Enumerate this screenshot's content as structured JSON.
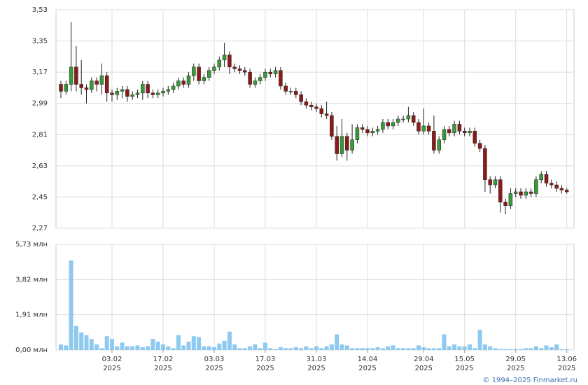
{
  "chart_data": {
    "type": "candlestick",
    "categories": [
      null,
      null,
      null,
      null,
      null,
      null,
      null,
      null,
      null,
      null,
      [
        "03.02",
        "2025"
      ],
      null,
      null,
      null,
      null,
      null,
      null,
      null,
      null,
      null,
      [
        "17.02",
        "2025"
      ],
      null,
      null,
      null,
      null,
      null,
      null,
      null,
      null,
      null,
      [
        "03.03",
        "2025"
      ],
      null,
      null,
      null,
      null,
      null,
      null,
      null,
      null,
      null,
      [
        "17.03",
        "2025"
      ],
      null,
      null,
      null,
      null,
      null,
      null,
      null,
      null,
      null,
      [
        "31.03",
        "2025"
      ],
      null,
      null,
      null,
      null,
      null,
      null,
      null,
      null,
      null,
      [
        "14.04",
        "2025"
      ],
      null,
      null,
      null,
      null,
      null,
      null,
      null,
      null,
      null,
      null,
      [
        "29.04",
        "2025"
      ],
      null,
      null,
      null,
      null,
      null,
      null,
      null,
      [
        "15.05",
        "2025"
      ],
      null,
      null,
      null,
      null,
      null,
      null,
      null,
      null,
      null,
      [
        "29.05",
        "2025"
      ],
      null,
      null,
      null,
      null,
      null,
      null,
      null,
      null,
      null,
      [
        "13.06",
        "2025"
      ]
    ],
    "open": [
      3.1,
      3.06,
      3.1,
      3.2,
      3.1,
      3.08,
      3.07,
      3.12,
      3.1,
      3.15,
      3.05,
      3.04,
      3.06,
      3.07,
      3.03,
      3.04,
      3.05,
      3.1,
      3.05,
      3.04,
      3.05,
      3.06,
      3.07,
      3.09,
      3.12,
      3.1,
      3.15,
      3.2,
      3.12,
      3.14,
      3.18,
      3.2,
      3.24,
      3.27,
      3.2,
      3.19,
      3.18,
      3.17,
      3.1,
      3.12,
      3.14,
      3.17,
      3.16,
      3.18,
      3.09,
      3.06,
      3.06,
      3.04,
      3.0,
      2.98,
      2.97,
      2.96,
      2.93,
      2.92,
      2.8,
      2.7,
      2.8,
      2.72,
      2.78,
      2.85,
      2.84,
      2.82,
      2.83,
      2.84,
      2.88,
      2.86,
      2.88,
      2.9,
      2.9,
      2.92,
      2.88,
      2.83,
      2.86,
      2.83,
      2.72,
      2.78,
      2.84,
      2.82,
      2.87,
      2.83,
      2.82,
      2.83,
      2.76,
      2.73,
      2.55,
      2.52,
      2.55,
      2.42,
      2.4,
      2.47,
      2.48,
      2.46,
      2.48,
      2.47,
      2.55,
      2.58,
      2.53,
      2.52,
      2.5,
      2.49
    ],
    "high": [
      3.12,
      3.12,
      3.46,
      3.32,
      3.24,
      3.1,
      3.14,
      3.14,
      3.22,
      3.17,
      3.07,
      3.08,
      3.09,
      3.09,
      3.06,
      3.07,
      3.12,
      3.12,
      3.07,
      3.07,
      3.08,
      3.09,
      3.11,
      3.14,
      3.14,
      3.17,
      3.22,
      3.22,
      3.16,
      3.2,
      3.22,
      3.26,
      3.34,
      3.29,
      3.22,
      3.21,
      3.2,
      3.19,
      3.14,
      3.16,
      3.19,
      3.19,
      3.2,
      3.2,
      3.11,
      3.08,
      3.08,
      3.06,
      3.02,
      3.0,
      2.99,
      2.98,
      3.0,
      2.94,
      2.86,
      2.9,
      2.82,
      2.87,
      2.87,
      2.87,
      2.86,
      2.85,
      2.86,
      2.9,
      2.9,
      2.9,
      2.92,
      2.92,
      2.97,
      2.94,
      2.9,
      2.96,
      2.88,
      2.92,
      2.8,
      2.86,
      2.86,
      2.89,
      2.89,
      2.85,
      2.85,
      2.85,
      2.78,
      2.75,
      2.57,
      2.57,
      2.57,
      2.44,
      2.5,
      2.5,
      2.5,
      2.5,
      2.5,
      2.57,
      2.6,
      2.6,
      2.55,
      2.54,
      2.52,
      2.5
    ],
    "low": [
      3.02,
      3.04,
      3.06,
      3.06,
      3.04,
      2.99,
      3.05,
      3.06,
      3.04,
      3.0,
      3.0,
      3.01,
      3.02,
      3.0,
      3.01,
      3.02,
      3.01,
      3.02,
      3.02,
      3.02,
      3.03,
      3.04,
      3.05,
      3.07,
      3.08,
      3.08,
      3.12,
      3.1,
      3.1,
      3.12,
      3.16,
      3.18,
      3.2,
      3.16,
      3.17,
      3.16,
      3.15,
      3.08,
      3.08,
      3.1,
      3.12,
      3.14,
      3.14,
      3.07,
      3.04,
      3.04,
      3.02,
      2.98,
      2.96,
      2.95,
      2.94,
      2.91,
      2.9,
      2.78,
      2.66,
      2.68,
      2.66,
      2.7,
      2.76,
      2.82,
      2.8,
      2.8,
      2.81,
      2.82,
      2.84,
      2.84,
      2.86,
      2.88,
      2.88,
      2.86,
      2.81,
      2.81,
      2.81,
      2.7,
      2.7,
      2.76,
      2.8,
      2.8,
      2.81,
      2.8,
      2.8,
      2.74,
      2.71,
      2.48,
      2.47,
      2.5,
      2.36,
      2.35,
      2.38,
      2.45,
      2.44,
      2.44,
      2.45,
      2.45,
      2.53,
      2.51,
      2.5,
      2.48,
      2.47,
      2.47
    ],
    "close": [
      3.06,
      3.1,
      3.2,
      3.1,
      3.08,
      3.07,
      3.12,
      3.1,
      3.15,
      3.05,
      3.04,
      3.06,
      3.07,
      3.03,
      3.04,
      3.05,
      3.1,
      3.05,
      3.04,
      3.05,
      3.06,
      3.07,
      3.09,
      3.12,
      3.1,
      3.15,
      3.2,
      3.12,
      3.14,
      3.18,
      3.2,
      3.24,
      3.27,
      3.2,
      3.19,
      3.18,
      3.17,
      3.1,
      3.12,
      3.14,
      3.17,
      3.16,
      3.18,
      3.09,
      3.06,
      3.06,
      3.04,
      3.0,
      2.98,
      2.97,
      2.96,
      2.93,
      2.92,
      2.8,
      2.7,
      2.8,
      2.72,
      2.78,
      2.85,
      2.84,
      2.82,
      2.83,
      2.84,
      2.88,
      2.86,
      2.88,
      2.9,
      2.9,
      2.92,
      2.88,
      2.83,
      2.86,
      2.83,
      2.72,
      2.78,
      2.84,
      2.82,
      2.87,
      2.83,
      2.82,
      2.83,
      2.76,
      2.73,
      2.55,
      2.52,
      2.55,
      2.42,
      2.4,
      2.47,
      2.48,
      2.46,
      2.48,
      2.47,
      2.55,
      2.58,
      2.53,
      2.52,
      2.5,
      2.49,
      2.48
    ],
    "up_color": "#3a9a3a",
    "down_color": "#8b1a1a",
    "ylim": [
      2.27,
      3.53
    ],
    "yticks": [
      {
        "value": 2.27,
        "label": "2,27"
      },
      {
        "value": 2.45,
        "label": "2,45"
      },
      {
        "value": 2.63,
        "label": "2,63"
      },
      {
        "value": 2.81,
        "label": "2,81"
      },
      {
        "value": 2.99,
        "label": "2,99"
      },
      {
        "value": 3.17,
        "label": "3,17"
      },
      {
        "value": 3.35,
        "label": "3,35"
      },
      {
        "value": 3.53,
        "label": "3,53"
      }
    ],
    "volume": {
      "color": "#8ec9ef",
      "values": [
        0.3,
        0.25,
        4.85,
        1.3,
        0.95,
        0.8,
        0.6,
        0.3,
        0.1,
        0.75,
        0.6,
        0.2,
        0.4,
        0.2,
        0.2,
        0.25,
        0.15,
        0.2,
        0.6,
        0.45,
        0.3,
        0.2,
        0.1,
        0.8,
        0.25,
        0.45,
        0.75,
        0.7,
        0.2,
        0.2,
        0.15,
        0.35,
        0.5,
        1.0,
        0.3,
        0.1,
        0.1,
        0.2,
        0.3,
        0.1,
        0.4,
        0.1,
        0.05,
        0.15,
        0.1,
        0.1,
        0.15,
        0.1,
        0.2,
        0.1,
        0.2,
        0.1,
        0.2,
        0.3,
        0.85,
        0.3,
        0.25,
        0.1,
        0.1,
        0.1,
        0.1,
        0.1,
        0.15,
        0.1,
        0.2,
        0.25,
        0.1,
        0.1,
        0.1,
        0.1,
        0.25,
        0.15,
        0.1,
        0.1,
        0.1,
        0.85,
        0.2,
        0.3,
        0.2,
        0.2,
        0.3,
        0.1,
        1.1,
        0.3,
        0.2,
        0.1,
        0.05,
        0.05,
        0.05,
        0.05,
        0.05,
        0.1,
        0.1,
        0.2,
        0.1,
        0.25,
        0.15,
        0.3,
        0.05,
        0.05
      ],
      "ylim": [
        0,
        5.73
      ],
      "yticks": [
        {
          "value": 0,
          "label": "0,00 млн"
        },
        {
          "value": 1.91,
          "label": "1,91 млн"
        },
        {
          "value": 3.82,
          "label": "3,82 млн"
        },
        {
          "value": 5.73,
          "label": "5,73 млн"
        }
      ]
    }
  },
  "footer": "© 1994–2025 Finmarket.ru"
}
